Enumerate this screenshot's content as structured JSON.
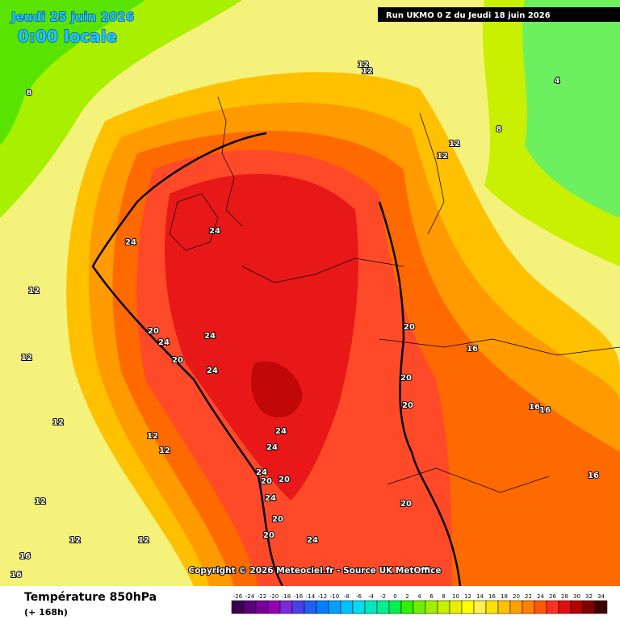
{
  "header": {
    "date": "Jeudi 25 juin 2026",
    "time": "0:00 locale",
    "run": "Run UKMO 0 Z du Jeudi 18 juin 2026"
  },
  "copyright": "Copyright © 2026 Meteociel.fr - Source UK MetOffice",
  "footer": {
    "title": "Température 850hPa",
    "lead": "(+ 168h)"
  },
  "legend": {
    "ticks": [
      -26,
      -24,
      -22,
      -20,
      -18,
      -16,
      -14,
      -12,
      -10,
      -8,
      -6,
      -4,
      -2,
      0,
      2,
      4,
      6,
      8,
      10,
      12,
      14,
      16,
      18,
      20,
      22,
      24,
      26,
      28,
      30,
      32,
      34
    ],
    "colors": [
      "#3c0050",
      "#5a0078",
      "#78009a",
      "#9600b4",
      "#7a2ad8",
      "#4a40e8",
      "#2060f0",
      "#0080ff",
      "#00a0ff",
      "#00c0ff",
      "#00dcf0",
      "#00e8c0",
      "#00f090",
      "#00f050",
      "#30f000",
      "#70f000",
      "#a0f000",
      "#c8f000",
      "#e8f000",
      "#ffff00",
      "#fff050",
      "#ffe000",
      "#ffc000",
      "#ffa000",
      "#ff8000",
      "#ff5a00",
      "#ff3020",
      "#e01010",
      "#b40000",
      "#800000",
      "#400000"
    ]
  },
  "contour_labels": [
    12,
    12,
    8,
    8,
    12,
    12,
    4,
    24,
    24,
    12,
    20,
    24,
    20,
    24,
    24,
    12,
    20,
    16,
    20,
    20,
    16,
    16,
    12,
    12,
    12,
    24,
    24,
    24,
    20,
    20,
    24,
    16,
    12,
    20,
    20,
    20,
    24,
    12,
    12,
    16,
    16
  ]
}
